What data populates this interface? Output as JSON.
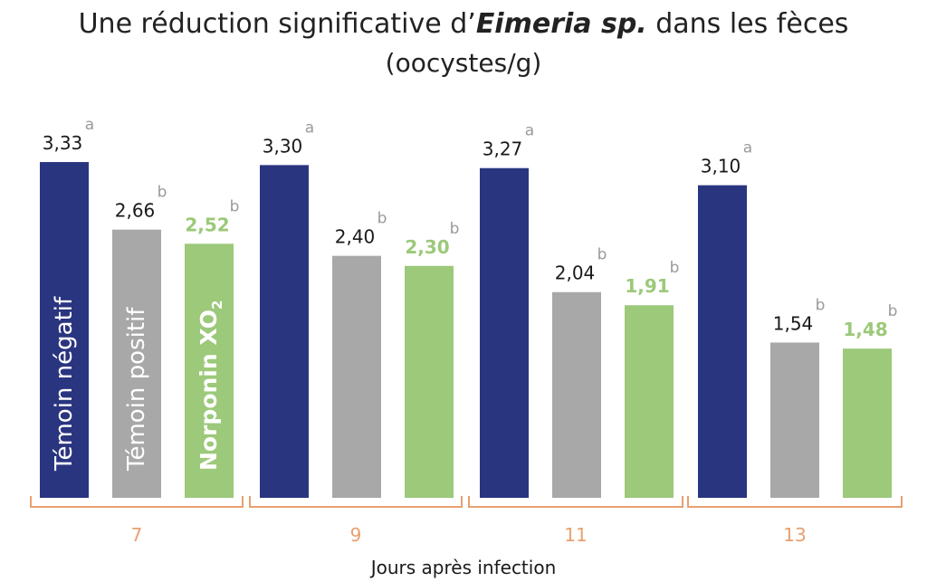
{
  "title": {
    "prefix": "Une réduction significative d’",
    "emphasis": "Eimeria sp.",
    "suffix": " dans les fèces",
    "subtitle": "(oocystes/g)"
  },
  "colors": {
    "negative_control": "#2a3580",
    "positive_control": "#a8a8a8",
    "norponin": "#9cc97a",
    "bracket": "#e8a070",
    "text": "#1a1a1a",
    "significance": "#9a9a9a"
  },
  "chart_data": {
    "type": "bar",
    "xlabel": "Jours après infection",
    "ylabel": "",
    "categories": [
      "7",
      "9",
      "11",
      "13"
    ],
    "series": [
      {
        "name": "Témoin négatif",
        "color": "#2a3580",
        "values": [
          3.33,
          3.3,
          3.27,
          3.1
        ],
        "labels": [
          "3,33",
          "3,30",
          "3,27",
          "3,10"
        ],
        "significance": [
          "a",
          "a",
          "a",
          "a"
        ]
      },
      {
        "name": "Témoin positif",
        "color": "#a8a8a8",
        "values": [
          2.66,
          2.4,
          2.04,
          1.54
        ],
        "labels": [
          "2,66",
          "2,40",
          "2,04",
          "1,54"
        ],
        "significance": [
          "b",
          "b",
          "b",
          "b"
        ]
      },
      {
        "name": "Norponin XO",
        "name_subscript": "2",
        "color": "#9cc97a",
        "values": [
          2.52,
          2.3,
          1.91,
          1.48
        ],
        "labels": [
          "2,52",
          "2,30",
          "1,91",
          "1,48"
        ],
        "significance": [
          "b",
          "b",
          "b",
          "b"
        ]
      }
    ],
    "legend": "inside-first-group-bars",
    "grid": false
  }
}
